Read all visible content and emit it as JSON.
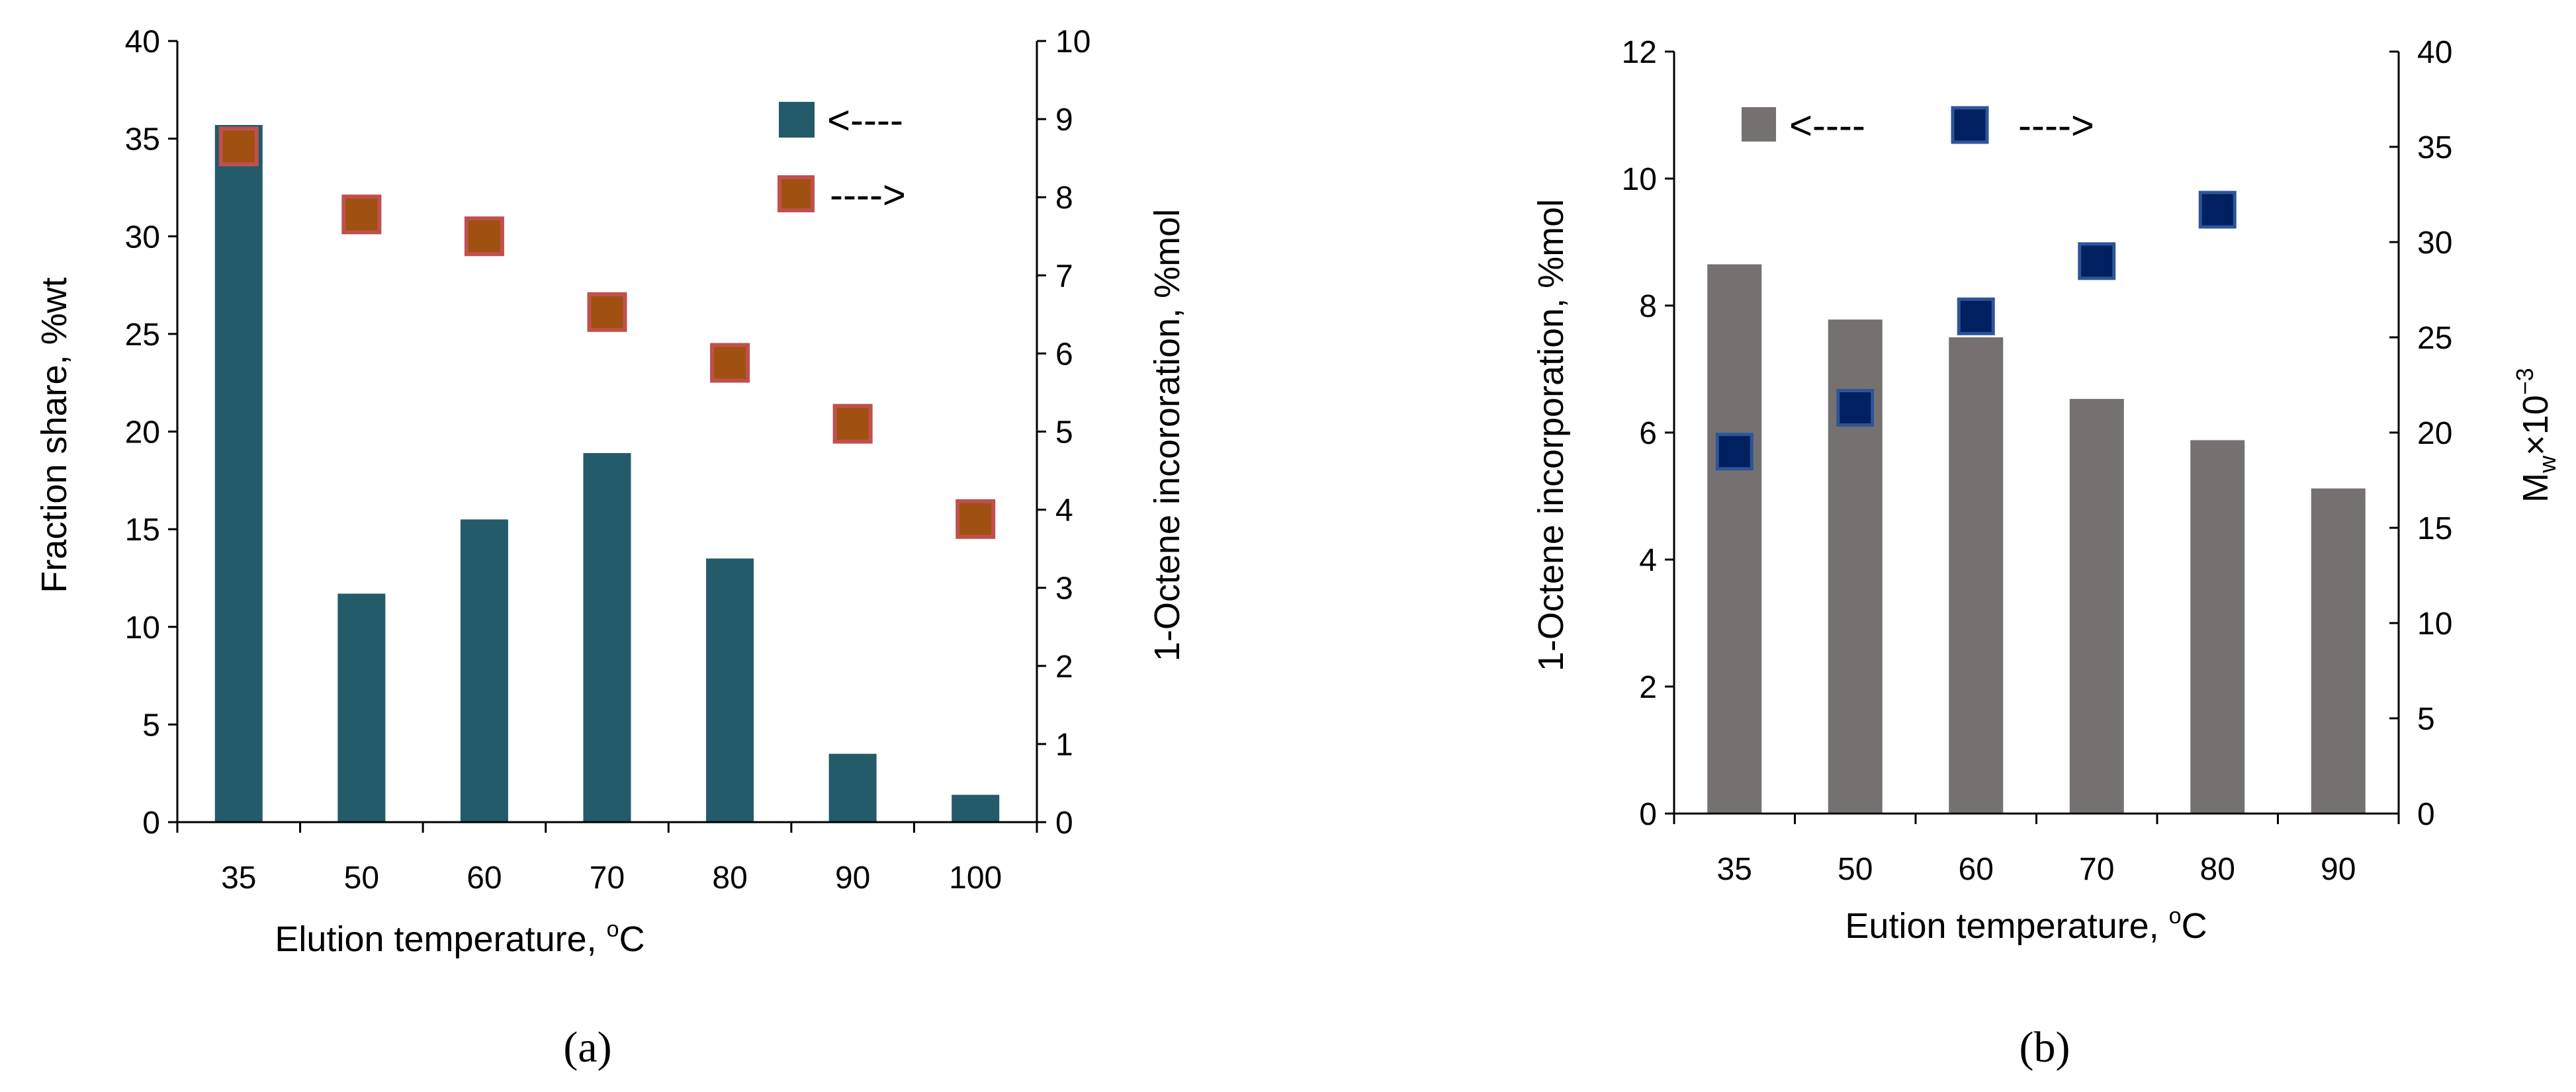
{
  "chart_data": [
    {
      "type": "bar+scatter",
      "panel_label": "(a)",
      "categories": [
        "35",
        "50",
        "60",
        "70",
        "80",
        "90",
        "100"
      ],
      "xlabel": "Elution temperature, °C",
      "xlabel_main": "Elution temperature, ",
      "xlabel_sup": "o",
      "xlabel_unit": "C",
      "ylabel_left": "Fraction share,  %wt",
      "ylabel_right": "1-Octene incororation, %mol",
      "ylim_left": [
        0,
        40
      ],
      "ylim_right": [
        0,
        10
      ],
      "yticks_left": [
        "0",
        "5",
        "10",
        "15",
        "20",
        "25",
        "30",
        "35",
        "40"
      ],
      "yticks_right": [
        "0",
        "1",
        "2",
        "3",
        "4",
        "5",
        "6",
        "7",
        "8",
        "9",
        "10"
      ],
      "series": [
        {
          "name": "Fraction share",
          "kind": "bar",
          "axis": "left",
          "legend_label": "<----",
          "color": "#235b6a",
          "values": [
            35.7,
            11.7,
            15.5,
            18.9,
            13.5,
            3.5,
            1.4
          ]
        },
        {
          "name": "1-Octene incororation",
          "kind": "scatter",
          "axis": "right",
          "legend_label": "---->",
          "color": "#a05010",
          "edge_color": "#c0504d",
          "values": [
            8.65,
            7.78,
            7.5,
            6.53,
            5.88,
            5.1,
            3.88
          ]
        }
      ]
    },
    {
      "type": "bar+scatter",
      "panel_label": "(b)",
      "categories": [
        "35",
        "50",
        "60",
        "70",
        "80",
        "90"
      ],
      "xlabel": "Eution temperature, °C",
      "xlabel_main": "Eution temperature, ",
      "xlabel_sup": "o",
      "xlabel_unit": "C",
      "ylabel_left": "1-Octene incorporation, %mol",
      "ylabel_right": "Mw×10⁻³",
      "ylabel_right_main": "M",
      "ylabel_right_sub": "w",
      "ylabel_right_rest": "×10",
      "ylabel_right_sup": "−3",
      "ylim_left": [
        0,
        12
      ],
      "ylim_right": [
        0,
        40
      ],
      "yticks_left": [
        "0",
        "2",
        "4",
        "6",
        "8",
        "10",
        "12"
      ],
      "yticks_right": [
        "0",
        "5",
        "10",
        "15",
        "20",
        "25",
        "30",
        "35",
        "40"
      ],
      "series": [
        {
          "name": "1-Octene incorporation",
          "kind": "bar",
          "axis": "left",
          "legend_label": "<----",
          "color": "#767171",
          "values": [
            8.65,
            7.78,
            7.5,
            6.53,
            5.88,
            5.12
          ]
        },
        {
          "name": "Mw×10⁻³",
          "kind": "scatter",
          "axis": "right",
          "legend_label": "---->",
          "color": "#002060",
          "edge_color": "#2f5597",
          "values": [
            19.0,
            21.3,
            26.1,
            29.0,
            31.7,
            null
          ]
        }
      ]
    }
  ]
}
